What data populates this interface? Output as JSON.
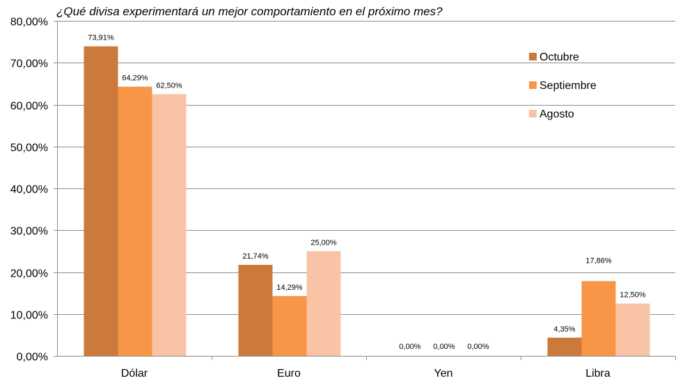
{
  "chart_data": {
    "type": "bar",
    "title": "¿Qué divisa experimentará un mejor comportamiento en el próximo mes?",
    "categories": [
      "Dólar",
      "Euro",
      "Yen",
      "Libra"
    ],
    "series": [
      {
        "name": "Octubre",
        "values": [
          73.91,
          21.74,
          0.0,
          4.35
        ],
        "labels": [
          "73,91%",
          "21,74%",
          "0,00%",
          "4,35%"
        ],
        "color": "#CB7A3B"
      },
      {
        "name": "Septiembre",
        "values": [
          64.29,
          14.29,
          0.0,
          17.86
        ],
        "labels": [
          "64,29%",
          "14,29%",
          "0,00%",
          "17,86%"
        ],
        "color": "#F79646"
      },
      {
        "name": "Agosto",
        "values": [
          62.5,
          25.0,
          0.0,
          12.5
        ],
        "labels": [
          "62,50%",
          "25,00%",
          "0,00%",
          "12,50%"
        ],
        "color": "#F9C3A5"
      }
    ],
    "ylim": [
      0,
      80
    ],
    "yticks": [
      0,
      10,
      20,
      30,
      40,
      50,
      60,
      70,
      80
    ],
    "ytick_labels": [
      "0,00%",
      "10,00%",
      "20,00%",
      "30,00%",
      "40,00%",
      "50,00%",
      "60,00%",
      "70,00%",
      "80,00%"
    ],
    "xlabel": "",
    "ylabel": "",
    "grid": true,
    "legend_position": "top-right"
  }
}
